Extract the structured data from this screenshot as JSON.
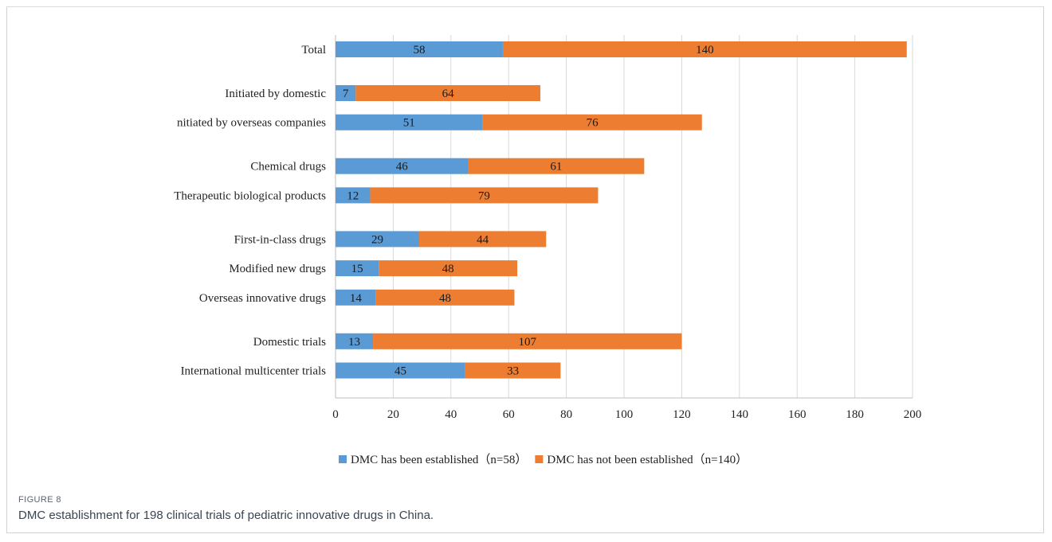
{
  "figure": {
    "label": "FIGURE 8",
    "caption": "DMC establishment for 198 clinical trials of pediatric innovative drugs in China."
  },
  "colors": {
    "established": "#5b9bd5",
    "not_established": "#ed7d31",
    "grid": "#d9d9d9",
    "axis": "#bfbfbf"
  },
  "chart_data": {
    "type": "bar",
    "orientation": "horizontal",
    "stacked": true,
    "categories": [
      "Total",
      "Initiated by domestic",
      "nitiated by overseas companies",
      "Chemical drugs",
      "Therapeutic biological products",
      "First-in-class drugs",
      "Modified new drugs",
      "Overseas innovative drugs",
      "Domestic trials",
      "International multicenter trials"
    ],
    "groups": [
      [
        0
      ],
      [
        1,
        2
      ],
      [
        3,
        4
      ],
      [
        5,
        6,
        7
      ],
      [
        8,
        9
      ]
    ],
    "series": [
      {
        "name": "DMC has been established（n=58）",
        "values": [
          58,
          7,
          51,
          46,
          12,
          29,
          15,
          14,
          13,
          45
        ]
      },
      {
        "name": "DMC has not been established（n=140）",
        "values": [
          140,
          64,
          76,
          61,
          79,
          44,
          48,
          48,
          107,
          33
        ]
      }
    ],
    "xlim": [
      0,
      200
    ],
    "xticks": [
      0,
      20,
      40,
      60,
      80,
      100,
      120,
      140,
      160,
      180,
      200
    ],
    "grid": "vertical",
    "legend": "bottom",
    "title": "",
    "xlabel": "",
    "ylabel": ""
  }
}
